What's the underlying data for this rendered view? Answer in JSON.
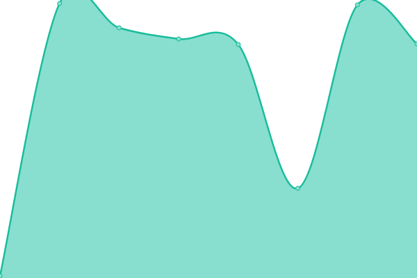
{
  "chart_data": {
    "type": "area",
    "title": "",
    "xlabel": "",
    "ylabel": "",
    "x": [
      1,
      2,
      3,
      4,
      5,
      6,
      7,
      8
    ],
    "values": [
      3,
      395,
      360,
      344,
      336,
      129,
      393,
      337
    ],
    "ylim": [
      0,
      400
    ],
    "axes_visible": false,
    "grid": false,
    "legend": "none",
    "curve": "smooth",
    "colors": {
      "fill": "#88dfcf",
      "stroke": "#1abc9c",
      "point_fill": "#88dfcf"
    }
  }
}
